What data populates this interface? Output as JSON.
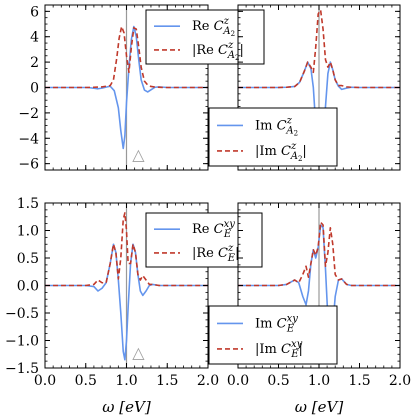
{
  "chart_data": [
    {
      "type": "line",
      "panel": "top-left",
      "xlim": [
        0,
        2
      ],
      "ylim": [
        -6.5,
        6.5
      ],
      "yticks": [
        "6",
        "4",
        "2",
        "0",
        "−2",
        "−4",
        "−6"
      ],
      "ytick_values": [
        6,
        4,
        2,
        0,
        -2,
        -4,
        -6
      ],
      "legend": {
        "placement": "top-right",
        "entries": [
          "Re C^z_{A2}",
          "|Re C^z_{A2}|"
        ]
      },
      "annotation": "△",
      "series": [
        {
          "name": "Re C^z_{A2}",
          "color": "#6495ed",
          "style": "solid",
          "x": [
            0.0,
            0.5,
            0.55,
            0.6,
            0.65,
            0.7,
            0.75,
            0.8,
            0.85,
            0.9,
            0.93,
            0.96,
            0.98,
            1.0,
            1.03,
            1.06,
            1.09,
            1.12,
            1.15,
            1.18,
            1.22,
            1.26,
            1.3,
            1.35,
            1.4,
            1.5,
            2.0
          ],
          "y": [
            0.0,
            0.0,
            -0.02,
            -0.06,
            -0.1,
            -0.05,
            0.03,
            0.1,
            -0.25,
            -1.6,
            -3.4,
            -4.8,
            -3.8,
            -1.2,
            1.6,
            3.8,
            4.8,
            4.0,
            2.2,
            0.6,
            -0.2,
            -0.35,
            -0.18,
            0.02,
            0.05,
            0.0,
            0.0
          ]
        },
        {
          "name": "|Re C^z_{A2}|",
          "color": "#c0392b",
          "style": "dashed",
          "x": [
            0.0,
            0.5,
            0.6,
            0.7,
            0.8,
            0.84,
            0.88,
            0.91,
            0.94,
            0.97,
            1.0,
            1.03,
            1.06,
            1.09,
            1.12,
            1.15,
            1.18,
            1.22,
            1.26,
            1.3,
            1.36,
            1.45,
            2.0
          ],
          "y": [
            0.0,
            0.0,
            0.02,
            0.05,
            0.15,
            0.6,
            2.3,
            3.9,
            4.8,
            4.3,
            2.5,
            1.2,
            3.2,
            4.7,
            4.6,
            3.2,
            1.6,
            0.5,
            0.2,
            0.08,
            0.03,
            0.0,
            0.0
          ]
        }
      ]
    },
    {
      "type": "line",
      "panel": "top-right",
      "xlim": [
        0,
        2
      ],
      "ylim": [
        -6.5,
        6.5
      ],
      "legend": {
        "placement": "bottom-left",
        "entries": [
          "Im C^z_{A2}",
          "|Im C^z_{A2}|"
        ]
      },
      "annotation": "△",
      "series": [
        {
          "name": "Im C^z_{A2}",
          "color": "#6495ed",
          "style": "solid",
          "x": [
            0.0,
            0.5,
            0.6,
            0.7,
            0.76,
            0.82,
            0.86,
            0.9,
            0.93,
            0.96,
            0.99,
            1.02,
            1.05,
            1.08,
            1.11,
            1.14,
            1.17,
            1.2,
            1.24,
            1.28,
            1.34,
            1.4,
            1.5,
            2.0
          ],
          "y": [
            0.0,
            0.0,
            0.02,
            0.08,
            0.4,
            1.3,
            2.0,
            1.5,
            0.0,
            -3.0,
            -5.8,
            -6.1,
            -4.5,
            -1.5,
            1.1,
            2.0,
            1.4,
            0.6,
            0.1,
            -0.15,
            -0.05,
            0.02,
            0.0,
            0.0
          ]
        },
        {
          "name": "|Im C^z_{A2}|",
          "color": "#c0392b",
          "style": "dashed",
          "x": [
            0.0,
            0.5,
            0.6,
            0.7,
            0.76,
            0.82,
            0.86,
            0.9,
            0.93,
            0.96,
            0.99,
            1.02,
            1.05,
            1.08,
            1.11,
            1.14,
            1.17,
            1.2,
            1.24,
            1.28,
            1.34,
            1.4,
            1.5,
            2.0
          ],
          "y": [
            0.0,
            0.0,
            0.02,
            0.08,
            0.4,
            1.3,
            2.0,
            1.6,
            1.2,
            3.2,
            5.8,
            6.1,
            4.6,
            2.2,
            1.6,
            2.0,
            1.4,
            0.6,
            0.15,
            0.15,
            0.05,
            0.02,
            0.0,
            0.0
          ]
        }
      ]
    },
    {
      "type": "line",
      "panel": "bottom-left",
      "xlim": [
        0,
        2
      ],
      "ylim": [
        -1.5,
        1.5
      ],
      "xticks": [
        "0.0",
        "0.5",
        "1.0",
        "1.5",
        "2.0"
      ],
      "xtick_values": [
        0,
        0.5,
        1,
        1.5,
        2
      ],
      "yticks": [
        "1.5",
        "1.0",
        "0.5",
        "0.0",
        "−0.5",
        "−1.0",
        "−1.5"
      ],
      "ytick_values": [
        1.5,
        1.0,
        0.5,
        0.0,
        -0.5,
        -1.0,
        -1.5
      ],
      "xlabel": "ω [eV]",
      "legend": {
        "placement": "top-right",
        "entries": [
          "Re C^{xy}_E",
          "|Re C^z_E|"
        ]
      },
      "annotation": "△",
      "series": [
        {
          "name": "Re C^{xy}_E",
          "color": "#6495ed",
          "style": "solid",
          "x": [
            0.0,
            0.5,
            0.6,
            0.65,
            0.7,
            0.75,
            0.8,
            0.84,
            0.87,
            0.9,
            0.93,
            0.96,
            0.98,
            1.0,
            1.02,
            1.05,
            1.08,
            1.11,
            1.14,
            1.17,
            1.2,
            1.24,
            1.28,
            1.32,
            1.4,
            1.5,
            2.0
          ],
          "y": [
            0.0,
            0.0,
            -0.02,
            -0.1,
            -0.05,
            0.05,
            0.4,
            0.75,
            0.6,
            0.1,
            -0.5,
            -1.2,
            -1.35,
            -1.0,
            -0.4,
            0.4,
            0.75,
            0.6,
            0.2,
            -0.1,
            -0.18,
            -0.1,
            0.0,
            0.02,
            0.0,
            0.0,
            0.0
          ]
        },
        {
          "name": "|Re C^z_E|",
          "color": "#c0392b",
          "style": "dashed",
          "x": [
            0.0,
            0.5,
            0.6,
            0.65,
            0.7,
            0.75,
            0.8,
            0.84,
            0.87,
            0.9,
            0.93,
            0.96,
            0.98,
            1.0,
            1.02,
            1.05,
            1.08,
            1.11,
            1.14,
            1.17,
            1.2,
            1.24,
            1.28,
            1.32,
            1.4,
            1.5,
            2.0
          ],
          "y": [
            0.0,
            0.0,
            0.02,
            0.1,
            0.05,
            0.05,
            0.4,
            0.75,
            0.6,
            0.12,
            0.5,
            1.2,
            1.32,
            1.0,
            0.4,
            0.4,
            0.75,
            0.6,
            0.2,
            0.1,
            0.18,
            0.1,
            0.02,
            0.02,
            0.0,
            0.0,
            0.0
          ]
        }
      ]
    },
    {
      "type": "line",
      "panel": "bottom-right",
      "xlim": [
        0,
        2
      ],
      "ylim": [
        -1.5,
        1.5
      ],
      "xticks": [
        "0.0",
        "0.5",
        "1.0",
        "1.5",
        "2.0"
      ],
      "xtick_values": [
        0,
        0.5,
        1,
        1.5,
        2
      ],
      "xlabel": "ω [eV]",
      "legend": {
        "placement": "bottom-right",
        "entries": [
          "Im C^{xy}_E",
          "|Im C^{xy}_E|"
        ]
      },
      "annotation": "△",
      "series": [
        {
          "name": "Im C^{xy}_E",
          "color": "#6495ed",
          "style": "solid",
          "x": [
            0.0,
            0.5,
            0.6,
            0.65,
            0.7,
            0.75,
            0.8,
            0.84,
            0.87,
            0.9,
            0.93,
            0.96,
            0.99,
            1.02,
            1.05,
            1.08,
            1.11,
            1.14,
            1.17,
            1.2,
            1.24,
            1.28,
            1.34,
            1.4,
            1.5,
            2.0
          ],
          "y": [
            0.0,
            0.0,
            0.02,
            0.06,
            0.1,
            0.05,
            -0.2,
            -0.35,
            -0.1,
            0.4,
            0.65,
            0.5,
            0.7,
            1.1,
            1.05,
            0.3,
            -0.6,
            -1.05,
            -0.75,
            -0.2,
            0.1,
            0.12,
            0.02,
            0.0,
            0.0,
            0.0
          ]
        },
        {
          "name": "|Im C^{xy}_E|",
          "color": "#c0392b",
          "style": "dashed",
          "x": [
            0.0,
            0.5,
            0.6,
            0.65,
            0.7,
            0.75,
            0.8,
            0.84,
            0.87,
            0.9,
            0.93,
            0.96,
            0.99,
            1.02,
            1.05,
            1.08,
            1.11,
            1.14,
            1.17,
            1.2,
            1.24,
            1.28,
            1.34,
            1.4,
            1.5,
            2.0
          ],
          "y": [
            0.0,
            0.0,
            0.02,
            0.06,
            0.1,
            0.05,
            0.2,
            0.35,
            0.15,
            0.4,
            0.65,
            0.55,
            0.7,
            1.15,
            1.1,
            0.35,
            0.6,
            1.05,
            0.75,
            0.2,
            0.1,
            0.12,
            0.02,
            0.0,
            0.0,
            0.0
          ]
        }
      ]
    }
  ],
  "reference_line": {
    "x": 1.0,
    "color": "#999999"
  },
  "colors": {
    "re_im_line": "#6495ed",
    "abs_line": "#c0392b",
    "axis": "#000000"
  }
}
